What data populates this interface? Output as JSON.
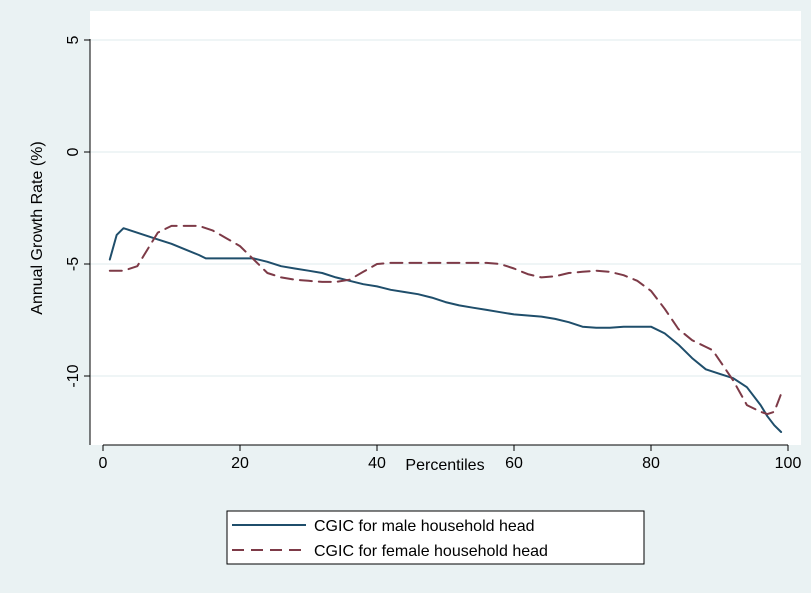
{
  "chart_data": {
    "type": "line",
    "title": "",
    "xlabel": "Percentiles",
    "ylabel": "Annual Growth Rate (%)",
    "xlim": [
      0,
      100
    ],
    "ylim": [
      -12.5,
      5
    ],
    "xticks": [
      0,
      20,
      40,
      60,
      80,
      100
    ],
    "xtick_labels": [
      "0",
      "20",
      "40",
      "60",
      "80",
      "100"
    ],
    "yticks": [
      5,
      0,
      -5,
      -10
    ],
    "ytick_labels": [
      "5",
      "0",
      "-5",
      "-10"
    ],
    "grid": true,
    "legend_position": "bottom",
    "series": [
      {
        "name": "CGIC for male household head",
        "color": "#1f4e6b",
        "dash": "solid",
        "x": [
          1,
          2,
          3,
          4,
          6,
          8,
          10,
          12,
          14,
          15,
          17,
          20,
          22,
          24,
          26,
          28,
          30,
          32,
          34,
          36,
          38,
          40,
          42,
          44,
          46,
          48,
          50,
          52,
          54,
          56,
          58,
          60,
          62,
          64,
          66,
          68,
          70,
          72,
          74,
          76,
          78,
          80,
          82,
          84,
          86,
          88,
          90,
          92,
          94,
          96,
          97,
          98,
          99
        ],
        "y": [
          -4.8,
          -3.7,
          -3.4,
          -3.5,
          -3.7,
          -3.9,
          -4.1,
          -4.35,
          -4.6,
          -4.75,
          -4.75,
          -4.75,
          -4.75,
          -4.9,
          -5.1,
          -5.2,
          -5.3,
          -5.4,
          -5.6,
          -5.75,
          -5.9,
          -6.0,
          -6.15,
          -6.25,
          -6.35,
          -6.5,
          -6.7,
          -6.85,
          -6.95,
          -7.05,
          -7.15,
          -7.25,
          -7.3,
          -7.35,
          -7.45,
          -7.6,
          -7.8,
          -7.85,
          -7.85,
          -7.8,
          -7.8,
          -7.8,
          -8.1,
          -8.6,
          -9.2,
          -9.7,
          -9.9,
          -10.1,
          -10.5,
          -11.3,
          -11.8,
          -12.2,
          -12.5
        ]
      },
      {
        "name": "CGIC for female household head",
        "color": "#7d3a47",
        "dash": "dashed",
        "x": [
          1,
          3,
          5,
          6,
          8,
          10,
          12,
          14,
          16,
          18,
          20,
          22,
          24,
          26,
          28,
          30,
          32,
          34,
          36,
          38,
          40,
          42,
          44,
          46,
          48,
          50,
          52,
          54,
          56,
          58,
          60,
          62,
          64,
          66,
          68,
          70,
          72,
          74,
          76,
          78,
          80,
          82,
          84,
          86,
          88,
          89,
          90,
          92,
          94,
          96,
          97,
          98,
          99
        ],
        "y": [
          -5.3,
          -5.3,
          -5.1,
          -4.6,
          -3.6,
          -3.3,
          -3.3,
          -3.3,
          -3.5,
          -3.85,
          -4.2,
          -4.8,
          -5.4,
          -5.6,
          -5.7,
          -5.75,
          -5.8,
          -5.8,
          -5.7,
          -5.35,
          -5.0,
          -4.95,
          -4.95,
          -4.95,
          -4.95,
          -4.95,
          -4.95,
          -4.95,
          -4.95,
          -5.0,
          -5.2,
          -5.45,
          -5.6,
          -5.55,
          -5.4,
          -5.35,
          -5.3,
          -5.35,
          -5.5,
          -5.75,
          -6.2,
          -7.0,
          -7.9,
          -8.4,
          -8.7,
          -8.85,
          -9.3,
          -10.2,
          -11.3,
          -11.6,
          -11.7,
          -11.6,
          -10.8
        ]
      }
    ]
  }
}
